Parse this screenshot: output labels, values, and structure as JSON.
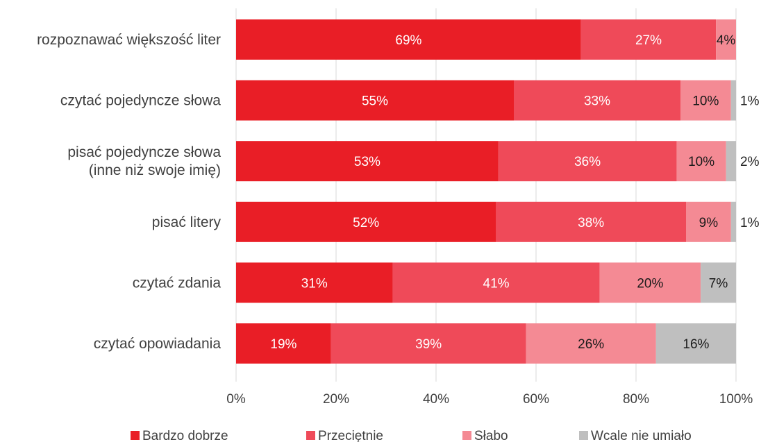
{
  "chart_data": {
    "type": "bar",
    "orientation": "horizontal",
    "stacked": true,
    "categories": [
      [
        "rozpoznawać większość liter"
      ],
      [
        "czytać pojedyncze słowa"
      ],
      [
        "pisać pojedyncze słowa",
        "(inne niż swoje imię)"
      ],
      [
        "pisać litery"
      ],
      [
        "czytać zdania"
      ],
      [
        "czytać opowiadania"
      ]
    ],
    "series": [
      {
        "name": "Bardzo dobrze",
        "color": "#e91e26",
        "values": [
          69,
          55,
          53,
          52,
          31,
          19
        ]
      },
      {
        "name": "Przeciętnie",
        "color": "#ef4a59",
        "values": [
          27,
          33,
          36,
          38,
          41,
          39
        ]
      },
      {
        "name": "Słabo",
        "color": "#f48a94",
        "values": [
          4,
          10,
          10,
          9,
          20,
          26
        ]
      },
      {
        "name": "Wcale nie umiało",
        "color": "#bfbfbf",
        "values": [
          0,
          1,
          2,
          1,
          7,
          16
        ]
      }
    ],
    "data_labels": [
      [
        "69%",
        "27%",
        "4%",
        ""
      ],
      [
        "55%",
        "33%",
        "10%",
        "1%"
      ],
      [
        "53%",
        "36%",
        "10%",
        "2%"
      ],
      [
        "52%",
        "38%",
        "9%",
        "1%"
      ],
      [
        "31%",
        "41%",
        "20%",
        "7%"
      ],
      [
        "19%",
        "39%",
        "26%",
        "16%"
      ]
    ],
    "x_ticks": [
      "0%",
      "20%",
      "40%",
      "60%",
      "80%",
      "100%"
    ],
    "xlim": [
      0,
      100
    ],
    "grid": true,
    "legend": "bottom"
  }
}
